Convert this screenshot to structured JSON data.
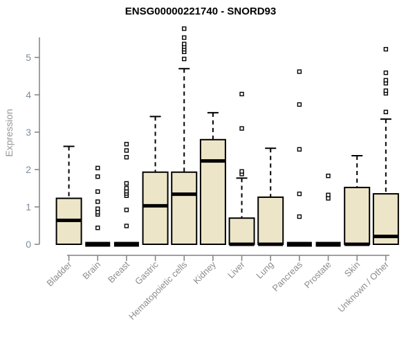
{
  "colors": {
    "box_fill": "#EDE5C7",
    "box_stroke": "#000000",
    "median": "#000000",
    "axis": "#808080",
    "y_tick_label": "#7E8C9C",
    "x_tick_label": "#8C8C8C",
    "title": "#000000",
    "background": "#FFFFFF"
  },
  "chart_data": {
    "type": "box",
    "title": "ENSG00000221740 - SNORD93",
    "ylabel": "Expression",
    "xlabel": "",
    "ylim": [
      0,
      5.9
    ],
    "yticks": [
      0,
      1,
      2,
      3,
      4,
      5
    ],
    "grid": false,
    "legend": "none",
    "categories": [
      "Bladder",
      "Brain",
      "Breast",
      "Gastric",
      "Hematopoietic cells",
      "Kidney",
      "Liver",
      "Lung",
      "Pancreas",
      "Prostate",
      "Skin",
      "Unknown / Other"
    ],
    "boxes": [
      {
        "category": "Bladder",
        "low": 0,
        "q1": 0,
        "median": 0.64,
        "q3": 1.23,
        "high": 2.62,
        "outliers": []
      },
      {
        "category": "Brain",
        "low": 0,
        "q1": 0,
        "median": 0,
        "q3": 0,
        "high": 0,
        "outliers": [
          0.44,
          0.8,
          0.86,
          0.95,
          1.14,
          1.41,
          1.81,
          2.04
        ]
      },
      {
        "category": "Breast",
        "low": 0,
        "q1": 0,
        "median": 0,
        "q3": 0,
        "high": 0,
        "outliers": [
          0.49,
          0.92,
          1.3,
          1.36,
          1.42,
          1.5,
          1.63,
          2.33,
          2.51,
          2.68
        ]
      },
      {
        "category": "Gastric",
        "low": 0,
        "q1": 0,
        "median": 1.03,
        "q3": 1.93,
        "high": 3.42,
        "outliers": []
      },
      {
        "category": "Hematopoietic cells",
        "low": 0,
        "q1": 0,
        "median": 1.34,
        "q3": 1.93,
        "high": 4.7,
        "outliers": [
          4.96,
          5.15,
          5.22,
          5.29,
          5.36,
          5.53,
          5.77
        ]
      },
      {
        "category": "Kidney",
        "low": 0,
        "q1": 0,
        "median": 2.23,
        "q3": 2.8,
        "high": 3.52,
        "outliers": []
      },
      {
        "category": "Liver",
        "low": 0,
        "q1": 0,
        "median": 0,
        "q3": 0.7,
        "high": 1.77,
        "outliers": [
          1.88,
          1.95,
          3.1,
          4.02
        ]
      },
      {
        "category": "Lung",
        "low": 0,
        "q1": 0,
        "median": 0,
        "q3": 1.26,
        "high": 2.57,
        "outliers": []
      },
      {
        "category": "Pancreas",
        "low": 0,
        "q1": 0,
        "median": 0,
        "q3": 0,
        "high": 0,
        "outliers": [
          0.74,
          1.35,
          2.54,
          3.74,
          4.62
        ]
      },
      {
        "category": "Prostate",
        "low": 0,
        "q1": 0,
        "median": 0,
        "q3": 0,
        "high": 0,
        "outliers": [
          1.23,
          1.32,
          1.83
        ]
      },
      {
        "category": "Skin",
        "low": 0,
        "q1": 0,
        "median": 0,
        "q3": 1.52,
        "high": 2.37,
        "outliers": []
      },
      {
        "category": "Unknown / Other",
        "low": 0,
        "q1": 0,
        "median": 0.21,
        "q3": 1.35,
        "high": 3.35,
        "outliers": [
          3.54,
          4.04,
          4.11,
          4.31,
          4.39,
          4.59,
          5.22
        ]
      }
    ]
  }
}
